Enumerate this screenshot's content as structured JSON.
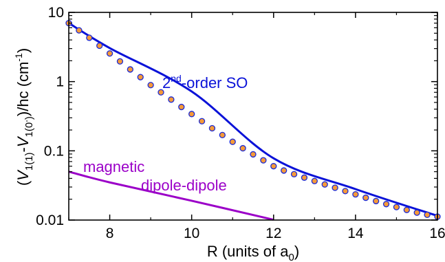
{
  "chart_data": {
    "type": "line",
    "title": "",
    "xlabel": "R (units of a",
    "xlabel_sub": "0",
    "xlabel_close": ")",
    "ylabel": {
      "open": "(",
      "v1": "V",
      "v1_sub": "1(1)",
      "minus": "-",
      "v2": "V",
      "v2_sub": "1(0",
      "v2_sub_prime": "-",
      "v2_sub_close": ")",
      "rest": ")/hc (cm",
      "exp": "-1",
      "close": ")"
    },
    "xlim": [
      7,
      16
    ],
    "ylim": [
      0.01,
      10
    ],
    "yscale": "log",
    "x_ticks": [
      8,
      10,
      12,
      14,
      16
    ],
    "x_tick_labels": [
      "8",
      "10",
      "12",
      "14",
      "16"
    ],
    "y_ticks": [
      0.01,
      0.1,
      1,
      10
    ],
    "y_tick_labels": [
      "0.01",
      "0.1",
      "1",
      "10"
    ],
    "grid": false,
    "annotations": {
      "so_pre": "2",
      "so_sup": "nd",
      "so_post": "-order SO",
      "mag_line1": "magnetic",
      "mag_line2": "dipole-dipole"
    },
    "colors": {
      "so_line": "#0a12d8",
      "points_fill": "#f59a38",
      "points_stroke": "#1a2ad8",
      "dd_line": "#9b00c8",
      "axis": "#000000"
    },
    "series": [
      {
        "kind": "curve",
        "anchors": [
          [
            7.0,
            7.0
          ],
          [
            8.0,
            3.05
          ],
          [
            10.0,
            0.72
          ],
          [
            12.0,
            0.078
          ],
          [
            14.0,
            0.028
          ],
          [
            16.0,
            0.0115
          ]
        ]
      },
      {
        "kind": "points",
        "x": [
          7.0,
          7.25,
          7.5,
          7.75,
          8.0,
          8.25,
          8.5,
          8.75,
          9.0,
          9.25,
          9.5,
          9.75,
          10.0,
          10.25,
          10.5,
          10.75,
          11.0,
          11.25,
          11.5,
          11.75,
          12.0,
          12.25,
          12.5,
          12.75,
          13.0,
          13.25,
          13.5,
          13.75,
          14.0,
          14.25,
          14.5,
          14.75,
          15.0,
          15.25,
          15.5,
          15.75,
          16.0
        ],
        "y": [
          7.0,
          5.5,
          4.3,
          3.3,
          2.55,
          1.96,
          1.5,
          1.16,
          0.89,
          0.7,
          0.55,
          0.43,
          0.34,
          0.268,
          0.212,
          0.169,
          0.135,
          0.109,
          0.089,
          0.073,
          0.06,
          0.052,
          0.046,
          0.041,
          0.0366,
          0.0327,
          0.0293,
          0.0262,
          0.0235,
          0.021,
          0.0188,
          0.017,
          0.0154,
          0.014,
          0.0128,
          0.0119,
          0.0112
        ]
      },
      {
        "kind": "curve",
        "anchors": [
          [
            7.0,
            0.05
          ],
          [
            8.0,
            0.035
          ],
          [
            10.0,
            0.019
          ],
          [
            12.0,
            0.0101
          ]
        ]
      }
    ]
  }
}
